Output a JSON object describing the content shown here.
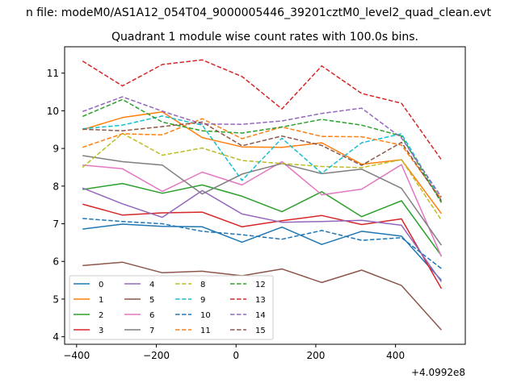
{
  "suptitle": "n file: modeM0/AS1A12_054T04_9000005446_39201cztM0_level2_quad_clean.evt",
  "chart_data": {
    "type": "line",
    "title": "Quadrant 1 module wise count rates with 100.0s bins.",
    "xlabel": "",
    "ylabel": "",
    "x_offset_label": "+4.0992e8",
    "xlim": [
      -430,
      575
    ],
    "ylim": [
      3.8,
      11.7
    ],
    "xticks": [
      -400,
      -200,
      0,
      200,
      400
    ],
    "xtick_labels": [
      "−400",
      "−200",
      "0",
      "200",
      "400"
    ],
    "yticks": [
      4,
      5,
      6,
      7,
      8,
      9,
      10,
      11
    ],
    "ytick_labels": [
      "4",
      "5",
      "6",
      "7",
      "8",
      "9",
      "10",
      "11"
    ],
    "grid": false,
    "legend_position": "lower-left",
    "x": [
      -385,
      -285,
      -185,
      -85,
      15,
      115,
      215,
      315,
      415,
      515
    ],
    "series": [
      {
        "name": "0",
        "color": "#1f77b4",
        "dash": "solid",
        "values": [
          6.86,
          6.99,
          6.93,
          6.92,
          6.51,
          6.91,
          6.45,
          6.8,
          6.67,
          5.5
        ]
      },
      {
        "name": "1",
        "color": "#ff7f0e",
        "dash": "solid",
        "values": [
          9.5,
          9.82,
          9.97,
          9.29,
          9.04,
          9.03,
          9.15,
          8.58,
          8.7,
          7.27
        ]
      },
      {
        "name": "2",
        "color": "#2ca02c",
        "dash": "solid",
        "values": [
          7.91,
          8.07,
          7.81,
          8.03,
          7.73,
          7.32,
          7.85,
          7.19,
          7.61,
          6.15
        ]
      },
      {
        "name": "3",
        "color": "#d62728",
        "dash": "solid",
        "values": [
          7.52,
          7.23,
          7.29,
          7.31,
          6.92,
          7.08,
          7.22,
          6.98,
          7.13,
          5.28
        ]
      },
      {
        "name": "4",
        "color": "#9467bd",
        "dash": "solid",
        "values": [
          7.95,
          7.53,
          7.17,
          7.88,
          7.26,
          7.04,
          7.06,
          7.09,
          6.96,
          5.46
        ]
      },
      {
        "name": "5",
        "color": "#8c564b",
        "dash": "solid",
        "values": [
          5.89,
          5.98,
          5.7,
          5.74,
          5.62,
          5.8,
          5.44,
          5.77,
          5.36,
          4.18
        ]
      },
      {
        "name": "6",
        "color": "#e377c2",
        "dash": "solid",
        "values": [
          8.56,
          8.46,
          7.86,
          8.37,
          8.03,
          8.65,
          7.77,
          7.92,
          8.57,
          6.13
        ]
      },
      {
        "name": "7",
        "color": "#7f7f7f",
        "dash": "solid",
        "values": [
          8.81,
          8.65,
          8.56,
          7.79,
          8.32,
          8.6,
          8.33,
          8.45,
          7.94,
          6.43
        ]
      },
      {
        "name": "8",
        "color": "#bcbd22",
        "dash": "dashed",
        "values": [
          8.5,
          9.4,
          8.82,
          9.01,
          8.68,
          8.6,
          8.52,
          8.49,
          8.7,
          7.1
        ]
      },
      {
        "name": "9",
        "color": "#17becf",
        "dash": "dashed",
        "values": [
          9.52,
          9.62,
          9.86,
          9.62,
          8.15,
          9.27,
          8.34,
          9.15,
          9.39,
          7.62
        ]
      },
      {
        "name": "10",
        "color": "#1f77b4",
        "dash": "dashed",
        "values": [
          7.14,
          7.06,
          7.0,
          6.8,
          6.71,
          6.59,
          6.82,
          6.56,
          6.63,
          5.81
        ]
      },
      {
        "name": "11",
        "color": "#ff7f0e",
        "dash": "dashed",
        "values": [
          9.03,
          9.39,
          9.36,
          9.79,
          9.26,
          9.57,
          9.32,
          9.31,
          9.09,
          7.65
        ]
      },
      {
        "name": "12",
        "color": "#2ca02c",
        "dash": "dashed",
        "values": [
          9.85,
          10.3,
          9.7,
          9.47,
          9.41,
          9.57,
          9.77,
          9.62,
          9.33,
          7.56
        ]
      },
      {
        "name": "13",
        "color": "#d62728",
        "dash": "dashed",
        "values": [
          11.32,
          10.66,
          11.23,
          11.35,
          10.91,
          10.05,
          11.19,
          10.46,
          10.2,
          8.7
        ]
      },
      {
        "name": "14",
        "color": "#9467bd",
        "dash": "dashed",
        "values": [
          9.98,
          10.37,
          9.99,
          9.65,
          9.64,
          9.73,
          9.93,
          10.07,
          9.28,
          7.71
        ]
      },
      {
        "name": "15",
        "color": "#8c564b",
        "dash": "dashed",
        "values": [
          9.51,
          9.47,
          9.58,
          9.7,
          9.07,
          9.33,
          9.08,
          8.55,
          9.16,
          7.6
        ]
      }
    ]
  }
}
